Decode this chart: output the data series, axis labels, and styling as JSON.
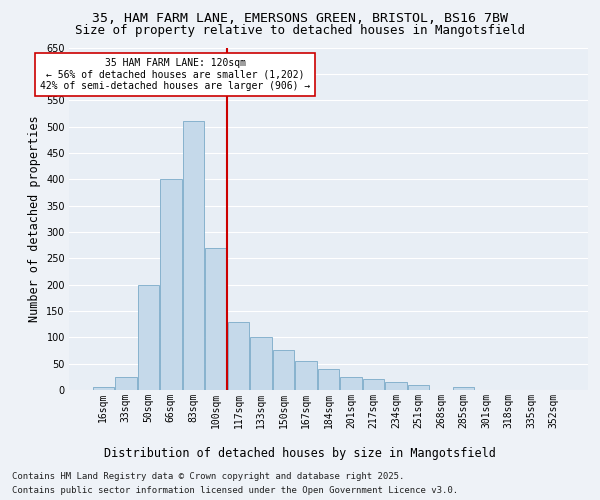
{
  "title_line1": "35, HAM FARM LANE, EMERSONS GREEN, BRISTOL, BS16 7BW",
  "title_line2": "Size of property relative to detached houses in Mangotsfield",
  "xlabel": "Distribution of detached houses by size in Mangotsfield",
  "ylabel": "Number of detached properties",
  "categories": [
    "16sqm",
    "33sqm",
    "50sqm",
    "66sqm",
    "83sqm",
    "100sqm",
    "117sqm",
    "133sqm",
    "150sqm",
    "167sqm",
    "184sqm",
    "201sqm",
    "217sqm",
    "234sqm",
    "251sqm",
    "268sqm",
    "285sqm",
    "301sqm",
    "318sqm",
    "335sqm",
    "352sqm"
  ],
  "values": [
    5,
    25,
    200,
    400,
    510,
    270,
    130,
    100,
    75,
    55,
    40,
    25,
    20,
    15,
    10,
    0,
    5,
    0,
    0,
    0,
    0
  ],
  "bar_color": "#c5d9ea",
  "bar_edge_color": "#7aaac8",
  "vline_color": "#cc0000",
  "annotation_text": "35 HAM FARM LANE: 120sqm\n← 56% of detached houses are smaller (1,202)\n42% of semi-detached houses are larger (906) →",
  "annotation_box_color": "#ffffff",
  "annotation_box_edge": "#cc0000",
  "ylim": [
    0,
    650
  ],
  "yticks": [
    0,
    50,
    100,
    150,
    200,
    250,
    300,
    350,
    400,
    450,
    500,
    550,
    600,
    650
  ],
  "bg_color": "#e8eef5",
  "plot_bg_color": "#dde6f0",
  "grid_color": "#ffffff",
  "footer_line1": "Contains HM Land Registry data © Crown copyright and database right 2025.",
  "footer_line2": "Contains public sector information licensed under the Open Government Licence v3.0.",
  "fig_bg_color": "#eef2f7",
  "title_fontsize": 9.5,
  "axis_label_fontsize": 8.5,
  "tick_fontsize": 7,
  "annotation_fontsize": 7,
  "footer_fontsize": 6.5
}
